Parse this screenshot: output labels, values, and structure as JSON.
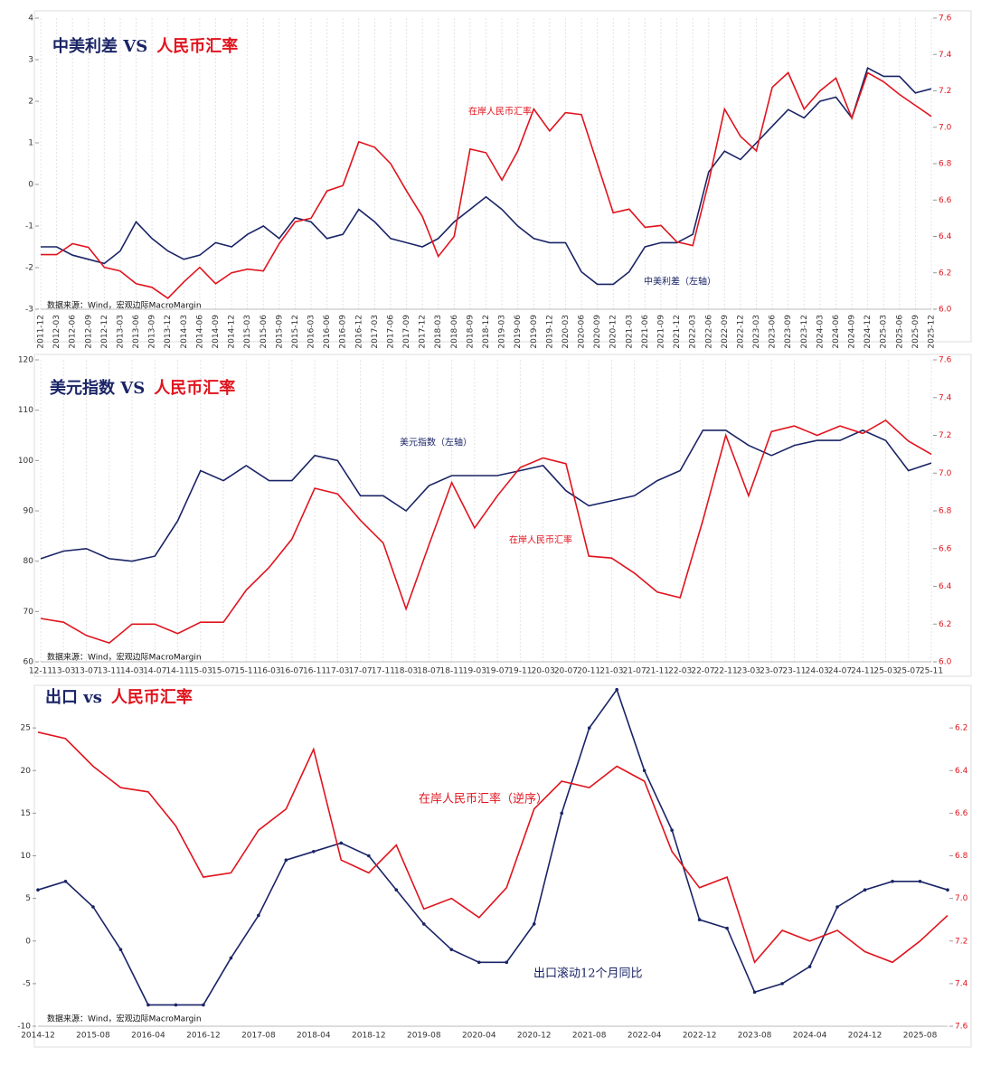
{
  "chart_data": [
    {
      "type": "line",
      "title": [
        "中美利差 VS",
        "人民币汇率"
      ],
      "source": "数据来源：Wind，宏观边际MacroMargin",
      "grid": "x",
      "categories": [
        "2011-12",
        "2012-03",
        "2012-06",
        "2012-09",
        "2012-12",
        "2013-03",
        "2013-06",
        "2013-09",
        "2013-12",
        "2014-03",
        "2014-06",
        "2014-09",
        "2014-12",
        "2015-03",
        "2015-06",
        "2015-09",
        "2015-12",
        "2016-03",
        "2016-06",
        "2016-09",
        "2016-12",
        "2017-03",
        "2017-06",
        "2017-09",
        "2017-12",
        "2018-03",
        "2018-06",
        "2018-09",
        "2018-12",
        "2019-03",
        "2019-06",
        "2019-09",
        "2019-12",
        "2020-03",
        "2020-06",
        "2020-09",
        "2020-12",
        "2021-03",
        "2021-06",
        "2021-09",
        "2021-12",
        "2022-03",
        "2022-06",
        "2022-09",
        "2022-12",
        "2023-03",
        "2023-06",
        "2023-09",
        "2023-12",
        "2024-03",
        "2024-06",
        "2024-09",
        "2024-12",
        "2025-03",
        "2025-06",
        "2025-09",
        "2025-12"
      ],
      "series": [
        {
          "name": "中美利差（左轴）",
          "color": "#1a2466",
          "values": [
            -1.5,
            -1.5,
            -1.7,
            -1.8,
            -1.9,
            -1.6,
            -0.9,
            -1.3,
            -1.6,
            -1.8,
            -1.7,
            -1.4,
            -1.5,
            -1.2,
            -1.0,
            -1.3,
            -0.8,
            -0.9,
            -1.3,
            -1.2,
            -0.6,
            -0.9,
            -1.3,
            -1.4,
            -1.5,
            -1.3,
            -0.9,
            -0.6,
            -0.3,
            -0.6,
            -1.0,
            -1.3,
            -1.4,
            -1.4,
            -2.1,
            -2.4,
            -2.4,
            -2.1,
            -1.5,
            -1.4,
            -1.4,
            -1.2,
            0.3,
            0.8,
            0.6,
            1.0,
            1.4,
            1.8,
            1.6,
            2.0,
            2.1,
            1.6,
            2.8,
            2.6,
            2.6,
            2.2,
            2.3
          ]
        },
        {
          "name": "在岸人民币汇率",
          "color": "#e0141e",
          "axis": "y2",
          "values": [
            6.3,
            6.3,
            6.36,
            6.34,
            6.23,
            6.21,
            6.14,
            6.12,
            6.06,
            6.15,
            6.23,
            6.14,
            6.2,
            6.22,
            6.21,
            6.36,
            6.48,
            6.5,
            6.65,
            6.68,
            6.92,
            6.89,
            6.8,
            6.65,
            6.51,
            6.29,
            6.4,
            6.88,
            6.86,
            6.71,
            6.87,
            7.1,
            6.98,
            7.08,
            7.07,
            6.8,
            6.53,
            6.55,
            6.45,
            6.46,
            6.37,
            6.35,
            6.7,
            7.1,
            6.95,
            6.87,
            7.22,
            7.3,
            7.1,
            7.2,
            7.27,
            7.05,
            7.3,
            7.25,
            7.18,
            7.12,
            7.06
          ]
        }
      ],
      "ylim": [
        -3,
        4
      ],
      "yticks": [
        -3,
        -2,
        -1,
        0,
        1,
        2,
        3,
        4
      ],
      "y2lim": [
        6.0,
        7.6
      ],
      "y2ticks": [
        {
          "value": 6.0,
          "label": "6.0"
        },
        6.2,
        6.4,
        6.6,
        6.8,
        {
          "value": 7.0,
          "label": "7.0"
        },
        7.2,
        7.4,
        7.6
      ]
    },
    {
      "type": "line",
      "title": [
        "美元指数 VS",
        "人民币汇率"
      ],
      "source": "数据来源：Wind，宏观边际MacroMargin",
      "grid": "x",
      "categories": [
        "12-11",
        "13-03",
        "13-07",
        "13-11",
        "14-03",
        "14-07",
        "14-11",
        "15-03",
        "15-07",
        "15-11",
        "16-03",
        "16-07",
        "16-11",
        "17-03",
        "17-07",
        "17-11",
        "18-03",
        "18-07",
        "18-11",
        "19-03",
        "19-07",
        "19-11",
        "20-03",
        "20-07",
        "20-11",
        "21-03",
        "21-07",
        "21-11",
        "22-03",
        "22-07",
        "22-11",
        "23-03",
        "23-07",
        "23-11",
        "24-03",
        "24-07",
        "24-11",
        "25-03",
        "25-07",
        "25-11"
      ],
      "series": [
        {
          "name": "美元指数（左轴）",
          "color": "#1a2466",
          "values": [
            80.5,
            82,
            82.5,
            80.5,
            80,
            81,
            88,
            98,
            96,
            99,
            96,
            96,
            101,
            100,
            93,
            93,
            90,
            95,
            97,
            97,
            97,
            98,
            99,
            94,
            91,
            92,
            93,
            96,
            98,
            106,
            106,
            103,
            101,
            103,
            104,
            104,
            106,
            104,
            98,
            99.5
          ]
        },
        {
          "name": "在岸人民币汇率",
          "color": "#e0141e",
          "axis": "y2",
          "values": [
            6.23,
            6.21,
            6.14,
            6.1,
            6.2,
            6.2,
            6.15,
            6.21,
            6.21,
            6.38,
            6.5,
            6.65,
            6.92,
            6.89,
            6.75,
            6.63,
            6.28,
            6.62,
            6.95,
            6.71,
            6.88,
            7.03,
            7.08,
            7.05,
            6.56,
            6.55,
            6.47,
            6.37,
            6.34,
            6.75,
            7.2,
            6.88,
            7.22,
            7.25,
            7.2,
            7.25,
            7.21,
            7.28,
            7.17,
            7.1
          ]
        }
      ],
      "ylim": [
        60,
        120
      ],
      "yticks": [
        60,
        70,
        80,
        90,
        100,
        110,
        120
      ],
      "y2lim": [
        6.0,
        7.6
      ],
      "y2ticks": [
        {
          "value": 6.0,
          "label": "6.0"
        },
        6.2,
        6.4,
        6.6,
        6.8,
        {
          "value": 7.0,
          "label": "7.0"
        },
        7.2,
        7.4,
        7.6
      ]
    },
    {
      "type": "line",
      "title": [
        "出口 vs",
        "人民币汇率"
      ],
      "source": "数据来源：Wind，宏观边际MacroMargin",
      "categories": [
        "2014-12",
        null,
        "2015-08",
        null,
        "2016-04",
        null,
        "2016-12",
        null,
        "2017-08",
        null,
        "2018-04",
        null,
        "2018-12",
        null,
        "2019-08",
        null,
        "2020-04",
        null,
        "2020-12",
        null,
        "2021-08",
        null,
        "2022-04",
        null,
        "2022-12",
        null,
        "2023-08",
        null,
        "2024-04",
        null,
        "2024-12",
        null,
        "2025-08",
        null
      ],
      "series": [
        {
          "name": "出口滚动12个月同比",
          "color": "#1a2466",
          "markers": true,
          "values": [
            6,
            7,
            4,
            -1,
            -7.5,
            -7.5,
            -7.5,
            -2,
            3,
            9.5,
            10.5,
            11.5,
            10,
            6,
            2,
            -1,
            -2.5,
            -2.5,
            2,
            15,
            25,
            29.5,
            20,
            13,
            2.5,
            1.5,
            -6,
            -5,
            -3,
            4,
            6,
            7,
            7,
            6
          ]
        },
        {
          "name": "在岸人民币汇率（逆序）",
          "color": "#e0141e",
          "axis": "y2",
          "values": [
            6.22,
            6.25,
            6.38,
            6.48,
            6.5,
            6.66,
            6.9,
            6.88,
            6.68,
            6.58,
            6.3,
            6.82,
            6.88,
            6.75,
            7.05,
            7.0,
            7.09,
            6.95,
            6.58,
            6.45,
            6.48,
            6.38,
            6.45,
            6.78,
            6.95,
            6.9,
            7.3,
            7.15,
            7.2,
            7.15,
            7.25,
            7.3,
            7.2,
            7.08
          ]
        }
      ],
      "ylim": [
        -10,
        30
      ],
      "yticks": [
        -10,
        -5,
        0,
        5,
        10,
        15,
        20,
        25
      ],
      "y2lim": [
        7.6,
        6.0
      ],
      "y2ticks": [
        6.2,
        6.4,
        6.6,
        6.8,
        {
          "value": 7.0,
          "label": "7.0"
        },
        7.2,
        7.4,
        7.6
      ]
    }
  ]
}
